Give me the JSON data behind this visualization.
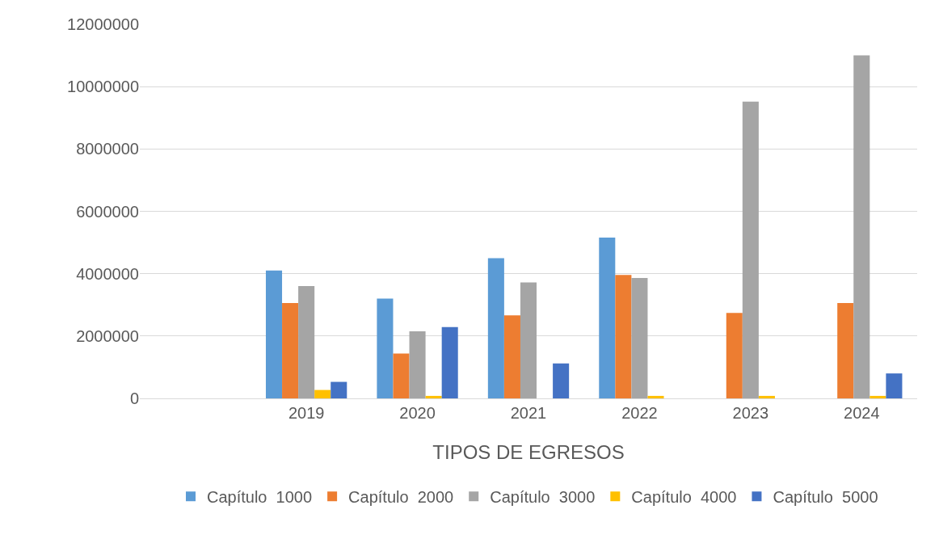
{
  "chart_data": {
    "type": "bar",
    "xlabel": "TIPOS DE EGRESOS",
    "categories": [
      null,
      "2019",
      "2020",
      "2021",
      "2022",
      "2023",
      "2024"
    ],
    "series": [
      {
        "name": "Capítulo  1000",
        "color": "#5b9bd5",
        "values": [
          null,
          4100000,
          3200000,
          4500000,
          5160000,
          null,
          null
        ]
      },
      {
        "name": "Capítulo  2000",
        "color": "#ed7d31",
        "values": [
          null,
          3060000,
          1440000,
          2660000,
          3960000,
          2740000,
          3060000
        ]
      },
      {
        "name": "Capítulo  3000",
        "color": "#a5a5a5",
        "values": [
          null,
          3600000,
          2150000,
          3720000,
          3860000,
          9520000,
          11000000
        ]
      },
      {
        "name": "Capítulo  4000",
        "color": "#ffc000",
        "values": [
          null,
          270000,
          80000,
          null,
          80000,
          80000,
          80000
        ]
      },
      {
        "name": "Capítulo  5000",
        "color": "#4472c4",
        "values": [
          null,
          530000,
          2290000,
          1120000,
          null,
          null,
          800000
        ]
      }
    ],
    "ylim": [
      0,
      12000000
    ],
    "yticks": [
      0,
      2000000,
      4000000,
      6000000,
      8000000,
      10000000,
      12000000
    ],
    "grid": "y",
    "legend": "bottom"
  }
}
